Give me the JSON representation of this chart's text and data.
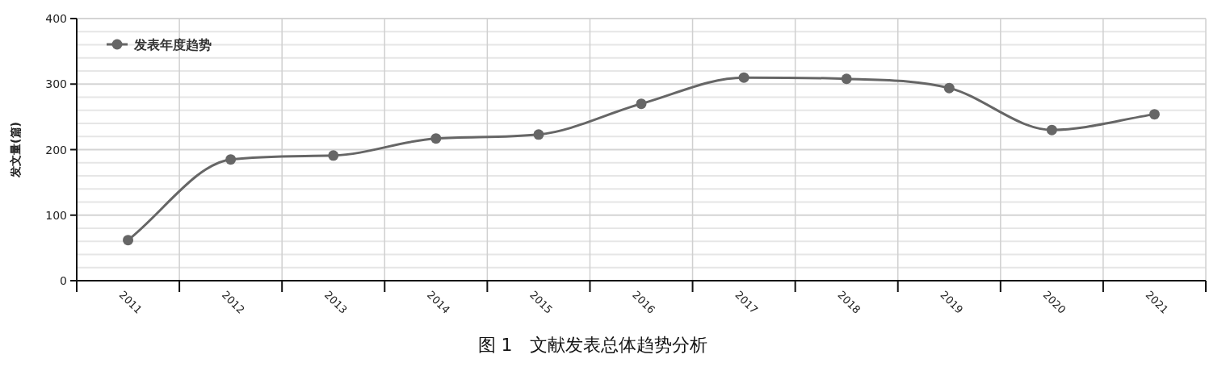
{
  "chart_data": {
    "type": "line",
    "title": "图 1　文献发表总体趋势分析",
    "ylabel": "发文量(篇)",
    "categories": [
      "2011",
      "2012",
      "2013",
      "2014",
      "2015",
      "2016",
      "2017",
      "2018",
      "2019",
      "2020",
      "2021"
    ],
    "series": [
      {
        "name": "发表年度趋势",
        "color": "#666666",
        "values": [
          62,
          185,
          191,
          217,
          223,
          270,
          310,
          308,
          294,
          230,
          254
        ]
      }
    ],
    "ylim": [
      0,
      400
    ],
    "yticks": [
      0,
      100,
      200,
      300,
      400
    ],
    "grid": true,
    "legend": "top left",
    "marker": "circle",
    "line_style": "solid"
  }
}
